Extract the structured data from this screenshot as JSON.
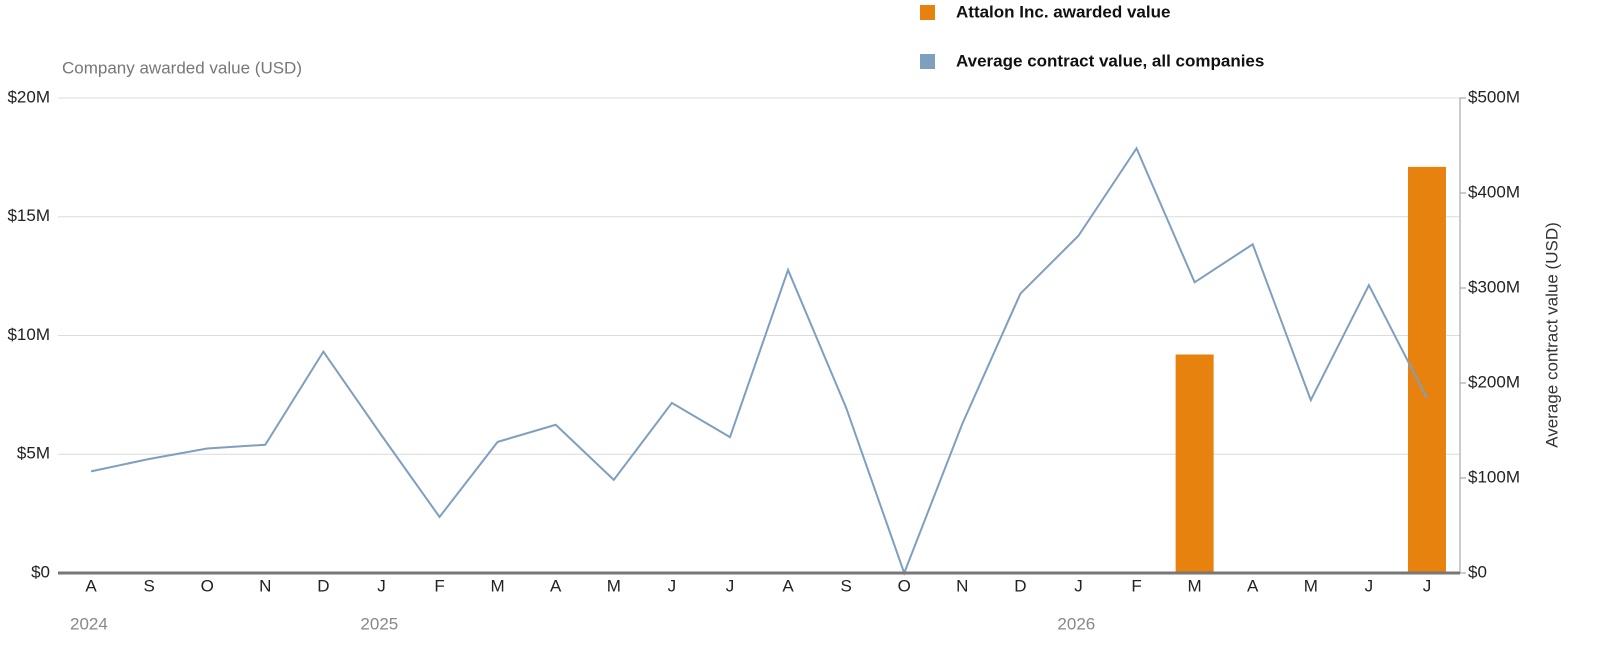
{
  "chart_data": {
    "type": "bar",
    "y_label": "Company awarded value (USD)",
    "y2_label": "Average contract value (USD)",
    "categories": [
      "A",
      "S",
      "O",
      "N",
      "D",
      "J",
      "F",
      "M",
      "A",
      "M",
      "J",
      "J",
      "A",
      "S",
      "O",
      "N",
      "D",
      "J",
      "F",
      "M",
      "A",
      "M",
      "J",
      "J"
    ],
    "year_labels": [
      "2024",
      null,
      null,
      null,
      null,
      "2025",
      null,
      null,
      null,
      null,
      null,
      null,
      null,
      null,
      null,
      null,
      null,
      "2026",
      null,
      null,
      null,
      null,
      null,
      null
    ],
    "series": [
      {
        "name": "Attalon Inc. awarded value",
        "type": "bar",
        "color": "#e8820e",
        "values": [
          null,
          null,
          null,
          null,
          null,
          null,
          null,
          null,
          null,
          null,
          null,
          null,
          null,
          null,
          null,
          null,
          null,
          null,
          null,
          9200000,
          null,
          null,
          null,
          17100000
        ]
      },
      {
        "name": "Average contract value, all companies",
        "type": "line",
        "color": "#7f9fbf",
        "axis": "y2",
        "values": [
          107000000,
          120000000,
          131000000,
          135000000,
          233000000,
          145000000,
          59000000,
          138000000,
          156000000,
          98000000,
          179000000,
          143000000,
          319000000,
          174000000,
          0,
          157000000,
          294000000,
          355000000,
          447000000,
          306000000,
          346000000,
          182000000,
          303000000,
          184000000
        ]
      }
    ],
    "ylim": [
      0,
      20000000
    ],
    "yticks": [
      {
        "value": 0,
        "label": "$0"
      },
      {
        "value": 5000000,
        "label": "$5M"
      },
      {
        "value": 10000000,
        "label": "$10M"
      },
      {
        "value": 15000000,
        "label": "$15M"
      },
      {
        "value": 20000000,
        "label": "$20M"
      }
    ],
    "y2lim": [
      0,
      500000000
    ],
    "y2ticks": [
      {
        "value": 0,
        "label": "$0"
      },
      {
        "value": 100000000,
        "label": "$100M"
      },
      {
        "value": 200000000,
        "label": "$200M"
      },
      {
        "value": 300000000,
        "label": "$300M"
      },
      {
        "value": 400000000,
        "label": "$400M"
      },
      {
        "value": 500000000,
        "label": "$500M"
      }
    ],
    "grid": true
  }
}
